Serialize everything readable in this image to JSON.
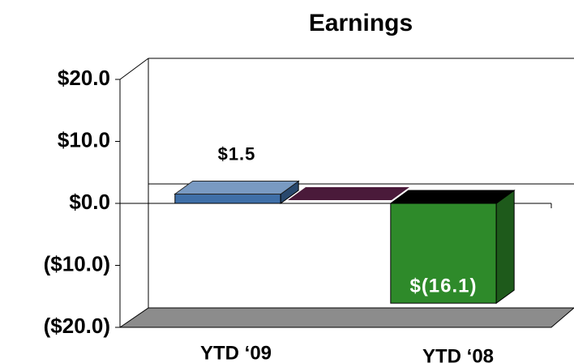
{
  "chart_data": {
    "type": "bar",
    "title": "Earnings",
    "categories": [
      "YTD ‘09",
      "YTD ‘08"
    ],
    "values": [
      1.5,
      -16.1
    ],
    "value_labels": [
      "$1.5",
      "$(16.1)"
    ],
    "colors": [
      "#3f6fa8",
      "#2e8a2a"
    ],
    "ylim": [
      -20,
      20
    ],
    "yticks": [
      {
        "value": -20,
        "label": "($20.0)"
      },
      {
        "value": -10,
        "label": "($10.0)"
      },
      {
        "value": 0,
        "label": "$0.0"
      },
      {
        "value": 10,
        "label": "$10.0"
      },
      {
        "value": 20,
        "label": "$20.0"
      }
    ]
  }
}
